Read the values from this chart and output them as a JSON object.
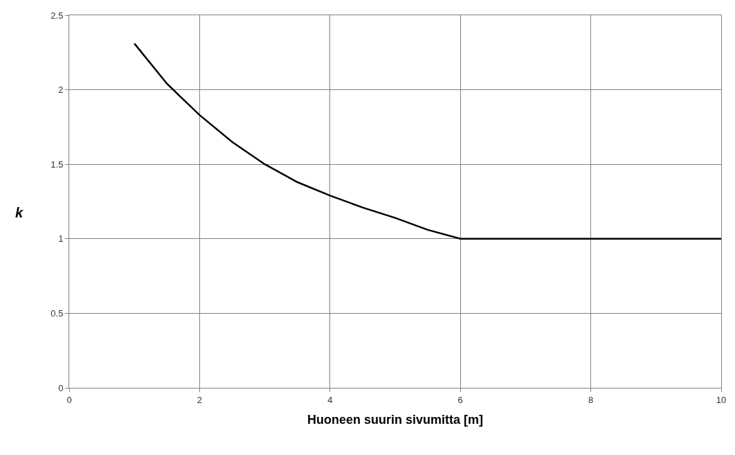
{
  "chart_data": {
    "type": "line",
    "xlabel": "Huoneen suurin sivumitta [m]",
    "ylabel": "k",
    "x": [
      1,
      1.5,
      2,
      2.5,
      3,
      3.5,
      4,
      4.5,
      5,
      5.5,
      6,
      10
    ],
    "series": [
      {
        "color": "#000000",
        "values": [
          2.31,
          2.04,
          1.83,
          1.65,
          1.5,
          1.38,
          1.29,
          1.21,
          1.14,
          1.06,
          1.0,
          1.0
        ]
      }
    ],
    "xlim": [
      0,
      10
    ],
    "xticks": [
      0,
      2,
      4,
      6,
      8,
      10
    ],
    "ylim": [
      0,
      2.5
    ],
    "yticks": [
      0,
      0.5,
      1,
      1.5,
      2,
      2.5
    ],
    "grid": true,
    "marker": "none",
    "line_style": "solid"
  }
}
